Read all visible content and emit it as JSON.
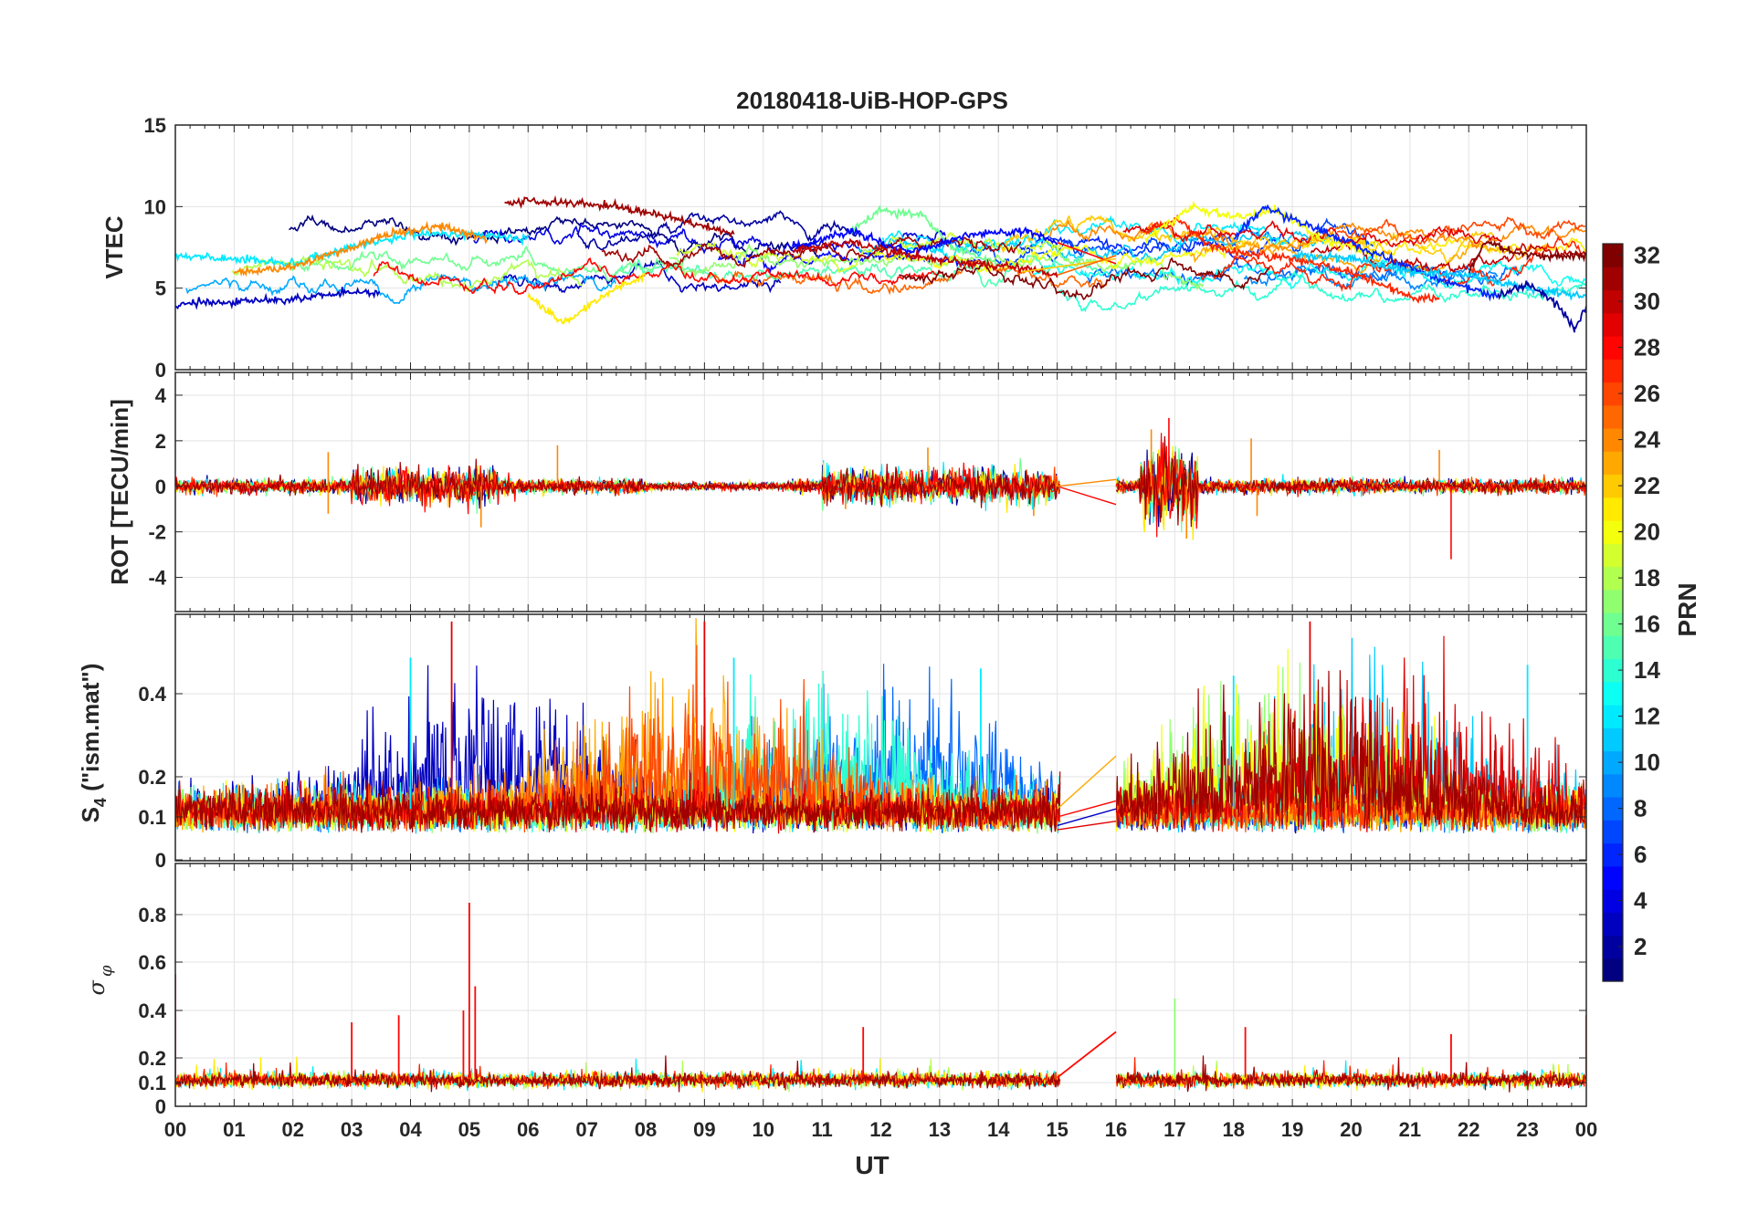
{
  "figure": {
    "title": "20180418-UiB-HOP-GPS",
    "xlabel": "UT",
    "colorbar_label": "PRN"
  },
  "chart_data": [
    {
      "type": "line",
      "id": "vtec",
      "ylabel": "VTEC",
      "ylim": [
        0,
        15
      ],
      "yticks": [
        "0",
        "5",
        "10",
        "15"
      ],
      "yticks_values": [
        0,
        5,
        10,
        15
      ],
      "grid": true,
      "series_summary": "32 PRN tracks, values mostly 4-10 TECU, peak ~10.5 near 06-07 UT and 16-18 UT",
      "tracks": [
        {
          "prn": 31,
          "x": [
            5.6,
            6.5,
            7.5,
            8.5,
            9.5
          ],
          "y": [
            10.3,
            10.3,
            10.0,
            9.3,
            8.3
          ]
        },
        {
          "prn": 3,
          "x": [
            0.0,
            1.0,
            2.0,
            3.0,
            3.5
          ],
          "y": [
            4.0,
            4.2,
            4.3,
            4.8,
            4.7
          ]
        },
        {
          "prn": 12,
          "x": [
            0.0,
            1.0,
            2.0,
            3.0,
            4.0,
            5.0,
            6.0
          ],
          "y": [
            7.0,
            6.8,
            6.5,
            7.5,
            8.3,
            8.3,
            8.0
          ]
        },
        {
          "prn": 24,
          "x": [
            1.0,
            2.0,
            3.0,
            3.5,
            4.5,
            5.3
          ],
          "y": [
            6.0,
            6.3,
            7.5,
            8.2,
            8.8,
            8.0
          ]
        },
        {
          "prn": 21,
          "x": [
            6.0,
            6.6,
            7.5,
            8.0
          ],
          "y": [
            4.5,
            2.9,
            5.0,
            5.8
          ]
        },
        {
          "prn": 16,
          "x": [
            11.5,
            12.0,
            12.7,
            13.2,
            14.0
          ],
          "y": [
            8.5,
            9.8,
            9.5,
            7.5,
            6.5
          ]
        },
        {
          "prn": 5,
          "x": [
            10.5,
            11.5,
            12.5,
            13.5,
            14.5,
            15.0
          ],
          "y": [
            7.5,
            8.5,
            7.2,
            8.3,
            8.5,
            7.8
          ]
        },
        {
          "prn": 30,
          "x": [
            10.5,
            11.5,
            12.5,
            13.5,
            14.5,
            15.0
          ],
          "y": [
            7.3,
            7.8,
            7.0,
            6.5,
            6.2,
            5.8
          ]
        },
        {
          "prn": 27,
          "x": [
            16.5,
            17.0,
            17.5,
            18.0,
            19.0,
            20.0,
            21.0,
            21.5
          ],
          "y": [
            8.5,
            9.3,
            7.8,
            7.2,
            6.8,
            6.0,
            4.5,
            4.3
          ]
        },
        {
          "prn": 20,
          "x": [
            16.5,
            17.3,
            18.0,
            18.7,
            19.5,
            20.5
          ],
          "y": [
            8.0,
            10.0,
            9.3,
            9.8,
            8.0,
            7.0
          ]
        },
        {
          "prn": 6,
          "x": [
            18.0,
            18.5,
            19.5,
            20.5,
            21.5,
            22.5
          ],
          "y": [
            8.0,
            10.0,
            8.5,
            7.0,
            5.5,
            4.5
          ]
        },
        {
          "prn": 32,
          "x": [
            22.0,
            22.3,
            23.0,
            24.0
          ],
          "y": [
            6.0,
            7.8,
            7.0,
            7.0
          ]
        },
        {
          "prn": 11,
          "x": [
            19.0,
            20.0,
            21.0,
            22.0,
            23.0,
            24.0
          ],
          "y": [
            7.0,
            6.8,
            6.0,
            5.8,
            5.0,
            4.5
          ]
        },
        {
          "prn": 2,
          "x": [
            22.5,
            23.0,
            23.5,
            23.8,
            24.0
          ],
          "y": [
            4.5,
            5.3,
            4.0,
            2.5,
            3.8
          ]
        }
      ]
    },
    {
      "type": "line",
      "id": "rot",
      "ylabel": "ROT [TECU/min]",
      "ylim": [
        -5.5,
        5
      ],
      "yticks": [
        "-4",
        "-2",
        "0",
        "2",
        "4"
      ],
      "yticks_values": [
        -4,
        -2,
        0,
        2,
        4
      ],
      "grid": true,
      "series_summary": "ROT fluctuations around 0, mostly within +/-1, spikes to +3 near 16.9 UT and -3.2 near 21.7 UT",
      "spikes": [
        {
          "x": 2.6,
          "y": 1.5
        },
        {
          "x": 2.6,
          "y": -1.2
        },
        {
          "x": 5.2,
          "y": -1.8
        },
        {
          "x": 6.5,
          "y": 1.8
        },
        {
          "x": 11.4,
          "y": -1.0
        },
        {
          "x": 12.8,
          "y": 1.7
        },
        {
          "x": 14.6,
          "y": -1.3
        },
        {
          "x": 16.6,
          "y": 2.5
        },
        {
          "x": 16.9,
          "y": 3.0
        },
        {
          "x": 17.2,
          "y": -2.3
        },
        {
          "x": 18.3,
          "y": 2.1
        },
        {
          "x": 18.4,
          "y": -1.3
        },
        {
          "x": 21.5,
          "y": 1.6
        },
        {
          "x": 21.7,
          "y": -3.2
        }
      ]
    },
    {
      "type": "line",
      "id": "s4",
      "ylabel": "S",
      "ylabel_sub": "4",
      "ylabel_tail": " (\"ism.mat\")",
      "ylim": [
        0,
        0.62
      ],
      "yscale": "log-like",
      "yticks": [
        "0",
        "0.1",
        "0.2",
        "0.4"
      ],
      "yticks_values": [
        0,
        0.1,
        0.2,
        0.4
      ],
      "grid": true,
      "series_summary": "S4 mostly 0.05-0.25, bursts up to ~0.6 near 04.5, 09 and 19.3 UT",
      "spikes": [
        {
          "x": 4.7,
          "y": 0.6
        },
        {
          "x": 4.0,
          "y": 0.5
        },
        {
          "x": 9.0,
          "y": 0.6
        },
        {
          "x": 9.5,
          "y": 0.5
        },
        {
          "x": 13.7,
          "y": 0.47
        },
        {
          "x": 19.3,
          "y": 0.6
        },
        {
          "x": 18.0,
          "y": 0.45
        },
        {
          "x": 23.0,
          "y": 0.48
        }
      ]
    },
    {
      "type": "line",
      "id": "sigma_phi",
      "ylabel": "σ",
      "ylabel_sub": "φ",
      "ylim": [
        0,
        1.0
      ],
      "yticks": [
        "0",
        "0.1",
        "0.2",
        "0.4",
        "0.6",
        "0.8"
      ],
      "yticks_values": [
        0,
        0.1,
        0.2,
        0.4,
        0.6,
        0.8
      ],
      "grid": true,
      "series_summary": "sigma phi baseline ~0.1-0.15, spike 0.85 at 05.0 UT, 0.45 at 17.0 UT",
      "spikes": [
        {
          "x": 0.0,
          "y": 0.55
        },
        {
          "x": 3.0,
          "y": 0.35
        },
        {
          "x": 3.8,
          "y": 0.38
        },
        {
          "x": 4.9,
          "y": 0.4
        },
        {
          "x": 5.0,
          "y": 0.85
        },
        {
          "x": 5.1,
          "y": 0.5
        },
        {
          "x": 11.7,
          "y": 0.33
        },
        {
          "x": 17.0,
          "y": 0.45
        },
        {
          "x": 18.2,
          "y": 0.33
        },
        {
          "x": 21.7,
          "y": 0.3
        },
        {
          "x": 24.0,
          "y": 0.38
        }
      ]
    }
  ],
  "xaxis": {
    "xlim": [
      0,
      24
    ],
    "ticklabels": [
      "00",
      "01",
      "02",
      "03",
      "04",
      "05",
      "06",
      "07",
      "08",
      "09",
      "10",
      "11",
      "12",
      "13",
      "14",
      "15",
      "16",
      "17",
      "18",
      "19",
      "20",
      "21",
      "22",
      "23",
      "00"
    ]
  },
  "colorbar": {
    "range": [
      1,
      32
    ],
    "ticks": [
      "2",
      "4",
      "6",
      "8",
      "10",
      "12",
      "14",
      "16",
      "18",
      "20",
      "22",
      "24",
      "26",
      "28",
      "30",
      "32"
    ],
    "tick_values": [
      2,
      4,
      6,
      8,
      10,
      12,
      14,
      16,
      18,
      20,
      22,
      24,
      26,
      28,
      30,
      32
    ],
    "colormap": "jet"
  }
}
